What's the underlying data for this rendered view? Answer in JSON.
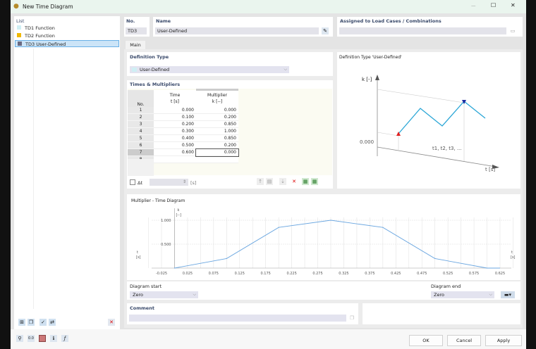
{
  "window": {
    "title": "New Time Diagram",
    "minimize": "—",
    "maximize": "☐",
    "close": "✕"
  },
  "list": {
    "title": "List",
    "items": [
      {
        "id": "TD1",
        "label": "Function",
        "color": "#cfeff4"
      },
      {
        "id": "TD2",
        "label": "Function",
        "color": "#f0b800"
      },
      {
        "id": "TD3",
        "label": "User-Defined",
        "color": "#6a6a82",
        "selected": true
      }
    ]
  },
  "header": {
    "no_label": "No.",
    "no_value": "TD3",
    "name_label": "Name",
    "name_value": "User-Defined",
    "assigned_label": "Assigned to Load Cases / Combinations",
    "assigned_value": ""
  },
  "tabs": [
    {
      "label": "Main",
      "active": true
    }
  ],
  "definition": {
    "title": "Definition Type",
    "value": "User-Defined"
  },
  "table": {
    "title": "Times & Multipliers",
    "headers": {
      "no": "No.",
      "time": "Time",
      "time_unit": "t [s]",
      "mult": "Multiplier",
      "mult_unit": "k [--]"
    },
    "rows": [
      [
        "1",
        "0.000",
        "0.000"
      ],
      [
        "2",
        "0.100",
        "0.200"
      ],
      [
        "3",
        "0.200",
        "0.850"
      ],
      [
        "4",
        "0.300",
        "1.000"
      ],
      [
        "5",
        "0.400",
        "0.850"
      ],
      [
        "6",
        "0.500",
        "0.200"
      ],
      [
        "7",
        "0.600",
        "0.000"
      ],
      [
        "8",
        "",
        ""
      ]
    ],
    "delta_label": "Δt",
    "delta_unit": "[s]"
  },
  "schematic": {
    "title": "Definition Type 'User-Defined'",
    "k_label": "k [-]",
    "zero": "0.000",
    "t_series": "t1, t2, t3, ...",
    "t_label": "t [s]"
  },
  "chart_data": {
    "type": "line",
    "title": "Multiplier - Time Diagram",
    "ylabel": "k",
    "yunit": "[--]",
    "xlabel": "t",
    "xunit": "[s]",
    "x": [
      0,
      0.1,
      0.2,
      0.3,
      0.4,
      0.5,
      0.6
    ],
    "values": [
      0,
      0.2,
      0.85,
      1.0,
      0.85,
      0.2,
      0
    ],
    "xticks": [
      "-0.025",
      "0.025",
      "0.075",
      "0.125",
      "0.175",
      "0.225",
      "0.275",
      "0.325",
      "0.375",
      "0.425",
      "0.475",
      "0.525",
      "0.575",
      "0.625"
    ],
    "yticks": [
      "0.500",
      "1.000"
    ],
    "xlim": [
      -0.05,
      0.65
    ],
    "ylim": [
      0,
      1.0
    ],
    "grid": true,
    "color": "#6aa6e0"
  },
  "diagram_start": {
    "label": "Diagram start",
    "value": "Zero"
  },
  "diagram_end": {
    "label": "Diagram end",
    "value": "Zero"
  },
  "comment": {
    "label": "Comment",
    "value": ""
  },
  "buttons": {
    "ok": "OK",
    "cancel": "Cancel",
    "apply": "Apply"
  }
}
